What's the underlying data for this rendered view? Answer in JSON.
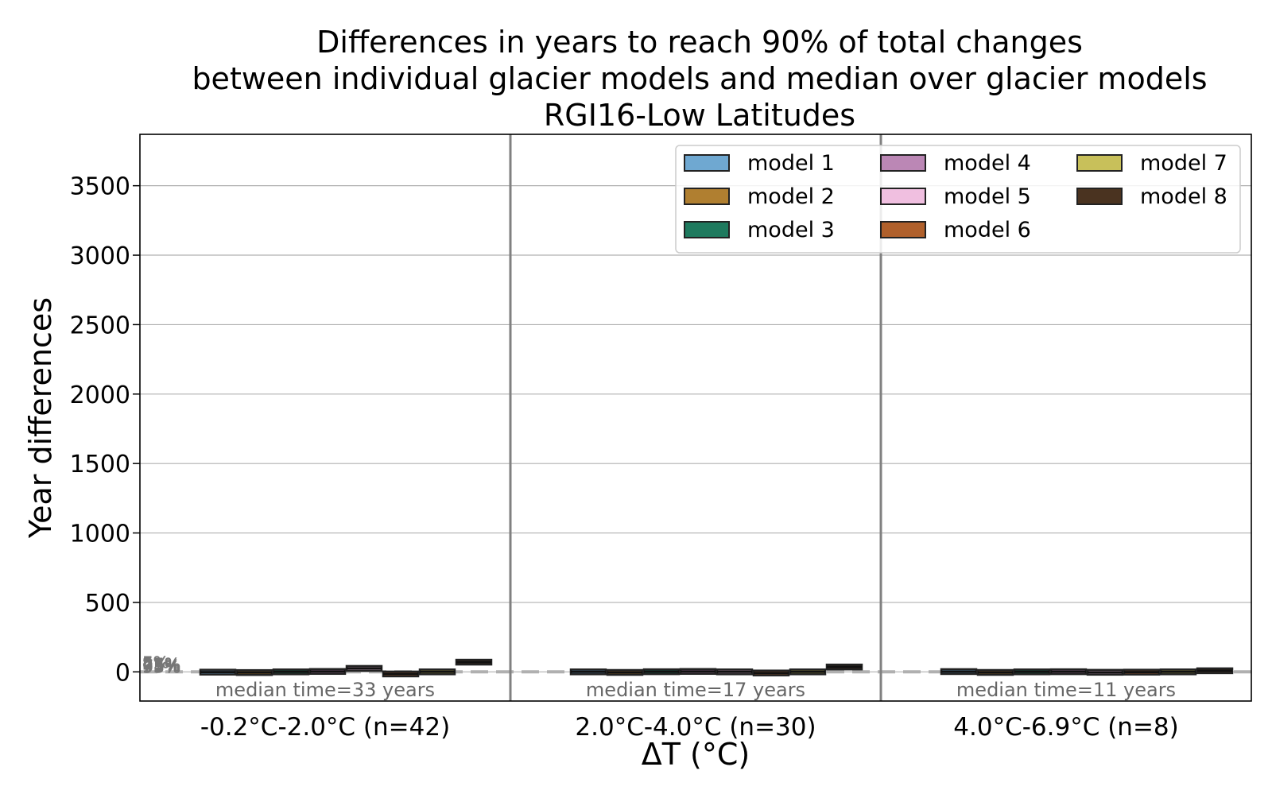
{
  "chart_data": {
    "type": "box",
    "title": [
      "Differences in years to reach 90% of total changes",
      "between individual glacier models and median over glacier models",
      "RGI16-Low Latitudes"
    ],
    "xlabel": "ΔT (°C)",
    "ylabel": "Year differences",
    "ylim": [
      -210,
      3870
    ],
    "yticks": [
      0,
      500,
      1000,
      1500,
      2000,
      2500,
      3000,
      3500
    ],
    "grid": true,
    "legend_position": "top-right",
    "reference_line": {
      "y": 0,
      "style": "dashed",
      "color": "#b0b0b0"
    },
    "percentile_labels": [
      "5%",
      "25%",
      "75%",
      "95%"
    ],
    "groups": [
      {
        "label": "-0.2°C-2.0°C (n=42)",
        "median_time": "median time=33 years"
      },
      {
        "label": "2.0°C-4.0°C (n=30)",
        "median_time": "median time=17 years"
      },
      {
        "label": "4.0°C-6.9°C (n=8)",
        "median_time": "median time=11 years"
      }
    ],
    "series": [
      {
        "name": "model 1",
        "color": "#6fa8d1",
        "values": [
          -2,
          0,
          2
        ]
      },
      {
        "name": "model 2",
        "color": "#b07f30",
        "values": [
          -5,
          -4,
          -4
        ]
      },
      {
        "name": "model 3",
        "color": "#1e7a5e",
        "values": [
          0,
          1,
          0
        ]
      },
      {
        "name": "model 4",
        "color": "#bb87b5",
        "values": [
          3,
          3,
          1
        ]
      },
      {
        "name": "model 5",
        "color": "#f0bfe0",
        "values": [
          25,
          0,
          -3
        ]
      },
      {
        "name": "model 6",
        "color": "#b0602b",
        "values": [
          -15,
          -8,
          -2
        ]
      },
      {
        "name": "model 7",
        "color": "#c8c05a",
        "values": [
          0,
          0,
          0
        ]
      },
      {
        "name": "model 8",
        "color": "#4a3320",
        "values": [
          70,
          35,
          8
        ]
      }
    ]
  }
}
